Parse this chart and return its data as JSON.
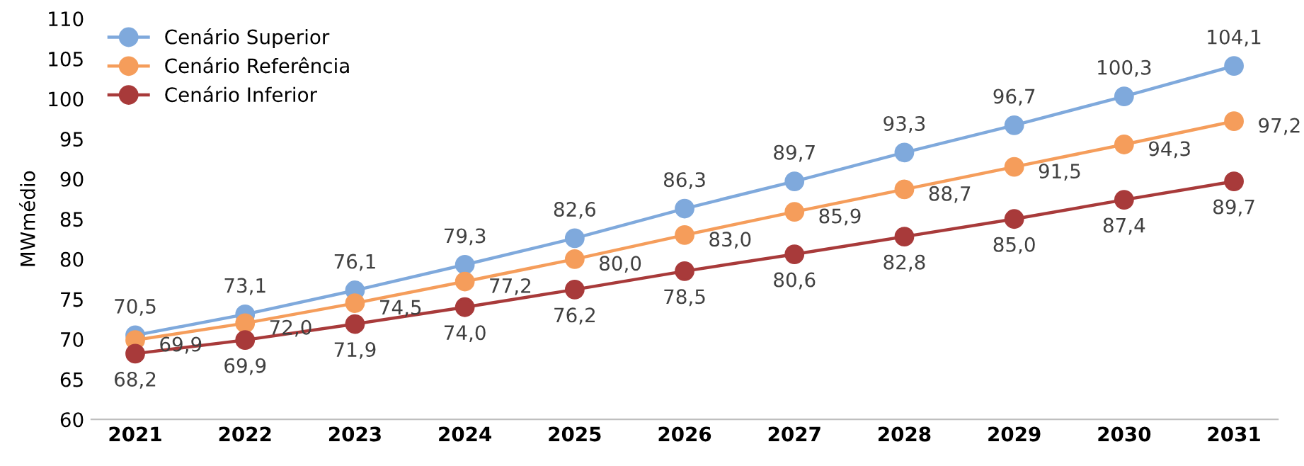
{
  "chart_data": {
    "type": "line",
    "ylabel": "MWmédio",
    "categories": [
      "2021",
      "2022",
      "2023",
      "2024",
      "2025",
      "2026",
      "2027",
      "2028",
      "2029",
      "2030",
      "2031"
    ],
    "series": [
      {
        "name": "Cenário Superior",
        "color": "#7fa9dc",
        "values": [
          70.5,
          73.1,
          76.1,
          79.3,
          82.6,
          86.3,
          89.7,
          93.3,
          96.7,
          100.3,
          104.1
        ],
        "value_labels": [
          "70,5",
          "73,1",
          "76,1",
          "79,3",
          "82,6",
          "86,3",
          "89,7",
          "93,3",
          "96,7",
          "100,3",
          "104,1"
        ]
      },
      {
        "name": "Cenário Referência",
        "color": "#f59d5b",
        "values": [
          69.9,
          72.0,
          74.5,
          77.2,
          80.0,
          83.0,
          85.9,
          88.7,
          91.5,
          94.3,
          97.2
        ],
        "value_labels": [
          "69,9",
          "72,0",
          "74,5",
          "77,2",
          "80,0",
          "83,0",
          "85,9",
          "88,7",
          "91,5",
          "94,3",
          "97,2"
        ]
      },
      {
        "name": "Cenário Inferior",
        "color": "#a83a3a",
        "values": [
          68.2,
          69.9,
          71.9,
          74.0,
          76.2,
          78.5,
          80.6,
          82.8,
          85.0,
          87.4,
          89.7
        ],
        "value_labels": [
          "68,2",
          "69,9",
          "71,9",
          "74,0",
          "76,2",
          "78,5",
          "80,6",
          "82,8",
          "85,0",
          "87,4",
          "89,7"
        ]
      }
    ],
    "ylim": [
      60,
      110
    ],
    "yticks": [
      60,
      65,
      70,
      75,
      80,
      85,
      90,
      95,
      100,
      105,
      110
    ],
    "grid": false,
    "legend": "top left",
    "marker": "circle",
    "line_style": "solid"
  }
}
